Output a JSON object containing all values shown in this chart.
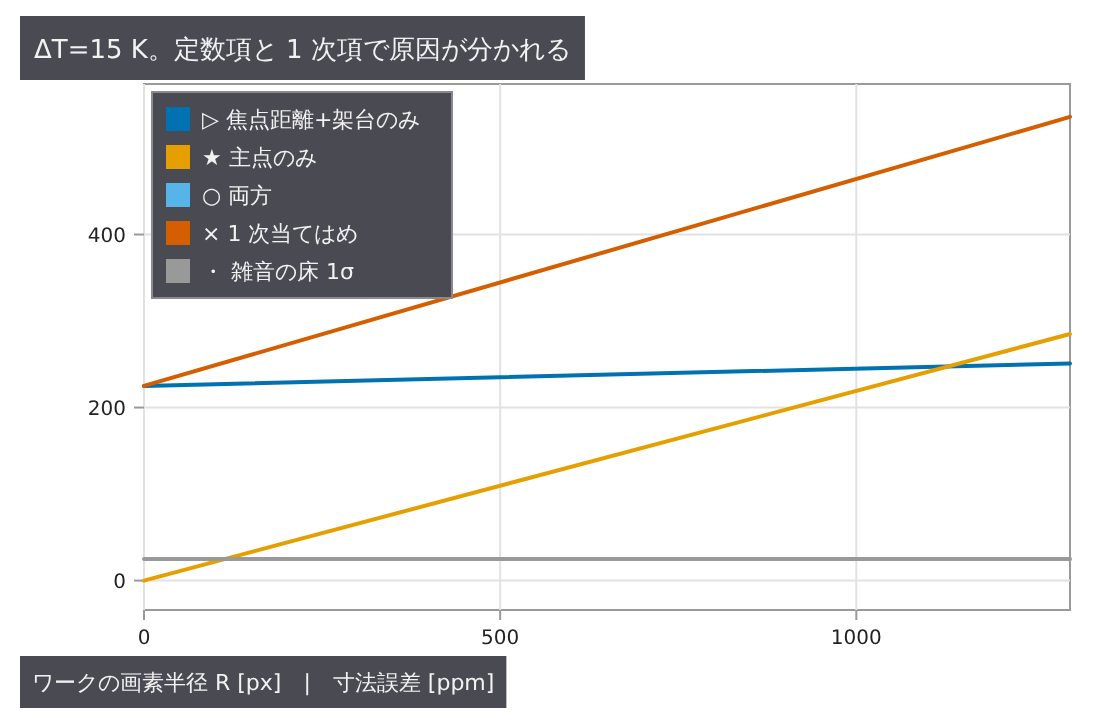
{
  "chart_data": {
    "type": "line",
    "title": "ΔT=15 K。定数項と 1 次項で原因が分かれる",
    "xlabel": "ワークの画素半径 R [px]　|　寸法誤差 [ppm]",
    "x": [
      0,
      1300
    ],
    "series": [
      {
        "name": "▷ 焦点距離+架台のみ",
        "color": "#0072b2",
        "values": [
          225,
          251
        ]
      },
      {
        "name": "★ 主点のみ",
        "color": "#e69f00",
        "values": [
          0,
          285
        ]
      },
      {
        "name": "○ 両方",
        "color": "#56b4e9",
        "values": [
          null,
          null
        ]
      },
      {
        "name": "× 1 次当てはめ",
        "color": "#d55e00",
        "values": [
          225,
          536
        ]
      },
      {
        "name": "・ 雑音の床 1σ",
        "color": "#999999",
        "values": [
          25,
          25
        ]
      }
    ],
    "xlim": [
      0,
      1300
    ],
    "ylim": [
      -34,
      574
    ],
    "xticks": [
      0,
      500,
      1000
    ],
    "yticks": [
      0,
      200,
      400
    ],
    "grid": true,
    "legend": "top left",
    "marker": "none",
    "line_style": "solid"
  }
}
